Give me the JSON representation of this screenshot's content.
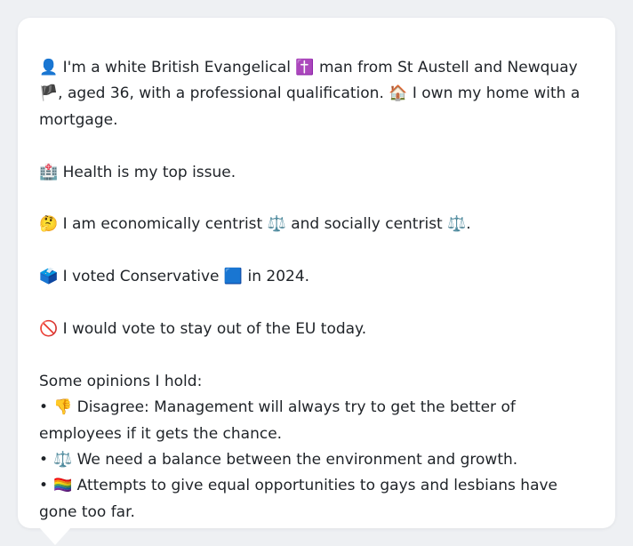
{
  "profile": {
    "intro_icon": "👤",
    "intro_a": "I'm a white British Evangelical",
    "religion_icon": "✝️",
    "intro_b": "man from St Austell and Newquay",
    "flag_icon": "🏴",
    "intro_c": ", aged 36, with a professional qualification.",
    "home_icon": "🏠",
    "intro_d": "I own my home with a mortgage."
  },
  "health": {
    "icon": "🏥",
    "text": "Health is my top issue."
  },
  "ideology": {
    "icon": "🤔",
    "text_a": "I am economically centrist",
    "econ_icon": "⚖️",
    "text_b": "and socially centrist",
    "social_icon": "⚖️",
    "text_c": "."
  },
  "vote": {
    "icon": "🗳️",
    "text_a": "I voted Conservative",
    "party_icon": "🟦",
    "text_b": "in 2024."
  },
  "eu": {
    "icon": "🚫",
    "text": "I would vote to stay out of the EU today."
  },
  "opinions": {
    "heading": "Some opinions I hold:",
    "bullet": "•",
    "items": [
      {
        "icon": "👎",
        "text": "Disagree: Management will always try to get the better of employees if it gets the chance."
      },
      {
        "icon": "⚖️",
        "text": "We need a balance between the environment and growth."
      },
      {
        "icon": "🏳️‍🌈",
        "text": "Attempts to give equal opportunities to gays and lesbians have gone too far."
      }
    ]
  }
}
